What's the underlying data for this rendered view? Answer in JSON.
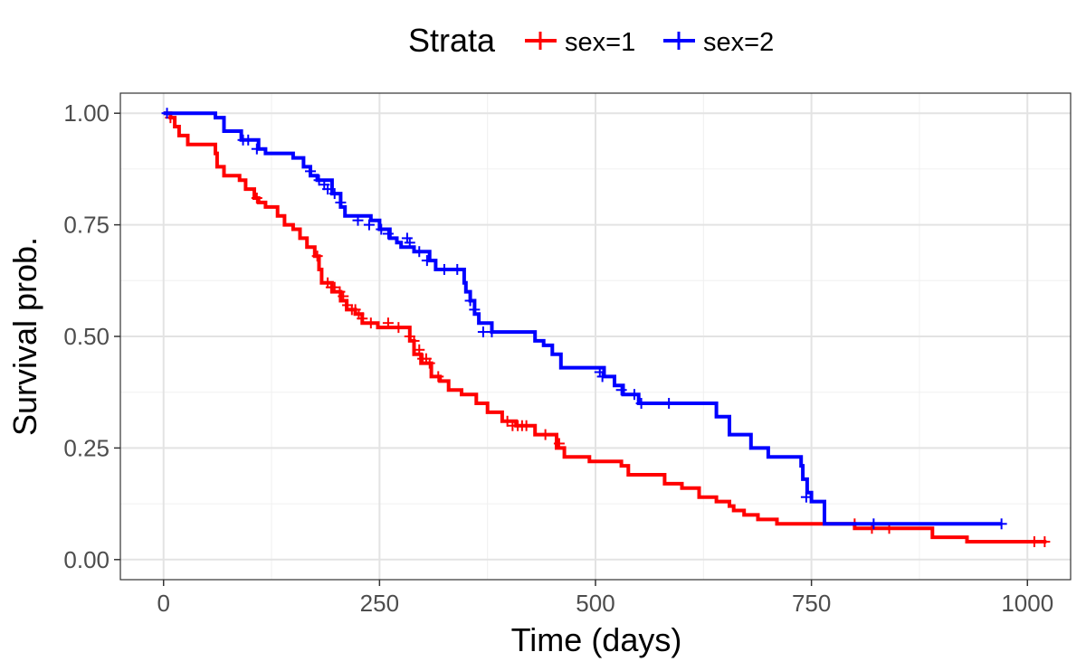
{
  "chart_data": {
    "type": "line",
    "subtype": "kaplan-meier step",
    "xlabel": "Time (days)",
    "ylabel": "Survival prob.",
    "xlim": [
      -50,
      1050
    ],
    "ylim": [
      -0.045,
      1.045
    ],
    "x_ticks": [
      0,
      250,
      500,
      750,
      1000
    ],
    "x_tick_labels": [
      "0",
      "250",
      "500",
      "750",
      "1000"
    ],
    "y_ticks": [
      0,
      0.25,
      0.5,
      0.75,
      1.0
    ],
    "y_tick_labels": [
      "0.00",
      "0.25",
      "0.50",
      "0.75",
      "1.00"
    ],
    "grid": true,
    "legend": {
      "title": "Strata",
      "position": "top"
    },
    "series": [
      {
        "name": "sex=1",
        "color": "#ff0000",
        "steps": [
          [
            0,
            1.0
          ],
          [
            8,
            0.99
          ],
          [
            13,
            0.97
          ],
          [
            18,
            0.95
          ],
          [
            28,
            0.93
          ],
          [
            60,
            0.91
          ],
          [
            62,
            0.88
          ],
          [
            70,
            0.86
          ],
          [
            88,
            0.85
          ],
          [
            95,
            0.83
          ],
          [
            105,
            0.81
          ],
          [
            110,
            0.8
          ],
          [
            118,
            0.79
          ],
          [
            132,
            0.77
          ],
          [
            140,
            0.75
          ],
          [
            150,
            0.74
          ],
          [
            158,
            0.72
          ],
          [
            166,
            0.7
          ],
          [
            175,
            0.68
          ],
          [
            180,
            0.65
          ],
          [
            183,
            0.62
          ],
          [
            195,
            0.6
          ],
          [
            205,
            0.58
          ],
          [
            212,
            0.56
          ],
          [
            222,
            0.55
          ],
          [
            230,
            0.53
          ],
          [
            248,
            0.52
          ],
          [
            285,
            0.49
          ],
          [
            290,
            0.46
          ],
          [
            298,
            0.44
          ],
          [
            310,
            0.41
          ],
          [
            320,
            0.4
          ],
          [
            330,
            0.38
          ],
          [
            345,
            0.37
          ],
          [
            362,
            0.35
          ],
          [
            375,
            0.33
          ],
          [
            392,
            0.31
          ],
          [
            408,
            0.3
          ],
          [
            430,
            0.28
          ],
          [
            455,
            0.25
          ],
          [
            464,
            0.23
          ],
          [
            493,
            0.22
          ],
          [
            530,
            0.21
          ],
          [
            538,
            0.19
          ],
          [
            580,
            0.17
          ],
          [
            600,
            0.16
          ],
          [
            620,
            0.14
          ],
          [
            640,
            0.13
          ],
          [
            655,
            0.12
          ],
          [
            660,
            0.11
          ],
          [
            672,
            0.1
          ],
          [
            688,
            0.09
          ],
          [
            710,
            0.08
          ],
          [
            800,
            0.07
          ],
          [
            890,
            0.05
          ],
          [
            930,
            0.04
          ],
          [
            1022,
            0.04
          ]
        ],
        "censor": [
          [
            8,
            0.99
          ],
          [
            108,
            0.81
          ],
          [
            178,
            0.68
          ],
          [
            190,
            0.62
          ],
          [
            194,
            0.61
          ],
          [
            198,
            0.61
          ],
          [
            204,
            0.6
          ],
          [
            208,
            0.59
          ],
          [
            213,
            0.57
          ],
          [
            218,
            0.56
          ],
          [
            222,
            0.56
          ],
          [
            226,
            0.55
          ],
          [
            230,
            0.54
          ],
          [
            240,
            0.53
          ],
          [
            260,
            0.53
          ],
          [
            272,
            0.52
          ],
          [
            285,
            0.5
          ],
          [
            290,
            0.49
          ],
          [
            296,
            0.47
          ],
          [
            300,
            0.45
          ],
          [
            304,
            0.45
          ],
          [
            308,
            0.44
          ],
          [
            318,
            0.41
          ],
          [
            398,
            0.31
          ],
          [
            404,
            0.3
          ],
          [
            410,
            0.3
          ],
          [
            415,
            0.3
          ],
          [
            420,
            0.3
          ],
          [
            442,
            0.28
          ],
          [
            458,
            0.26
          ],
          [
            800,
            0.08
          ],
          [
            820,
            0.07
          ],
          [
            840,
            0.07
          ],
          [
            1008,
            0.04
          ],
          [
            1020,
            0.04
          ]
        ]
      },
      {
        "name": "sex=2",
        "color": "#0000ff",
        "steps": [
          [
            0,
            1.0
          ],
          [
            60,
            0.99
          ],
          [
            70,
            0.96
          ],
          [
            90,
            0.94
          ],
          [
            110,
            0.92
          ],
          [
            118,
            0.91
          ],
          [
            150,
            0.9
          ],
          [
            162,
            0.88
          ],
          [
            170,
            0.86
          ],
          [
            178,
            0.85
          ],
          [
            195,
            0.82
          ],
          [
            205,
            0.79
          ],
          [
            210,
            0.77
          ],
          [
            240,
            0.76
          ],
          [
            250,
            0.74
          ],
          [
            262,
            0.72
          ],
          [
            270,
            0.71
          ],
          [
            275,
            0.7
          ],
          [
            290,
            0.69
          ],
          [
            308,
            0.67
          ],
          [
            315,
            0.65
          ],
          [
            348,
            0.62
          ],
          [
            350,
            0.6
          ],
          [
            355,
            0.58
          ],
          [
            360,
            0.55
          ],
          [
            365,
            0.53
          ],
          [
            380,
            0.51
          ],
          [
            430,
            0.49
          ],
          [
            440,
            0.48
          ],
          [
            450,
            0.46
          ],
          [
            460,
            0.43
          ],
          [
            510,
            0.41
          ],
          [
            522,
            0.39
          ],
          [
            532,
            0.37
          ],
          [
            550,
            0.35
          ],
          [
            640,
            0.32
          ],
          [
            655,
            0.28
          ],
          [
            680,
            0.25
          ],
          [
            700,
            0.23
          ],
          [
            738,
            0.21
          ],
          [
            740,
            0.18
          ],
          [
            745,
            0.15
          ],
          [
            750,
            0.13
          ],
          [
            765,
            0.08
          ],
          [
            970,
            0.08
          ]
        ],
        "censor": [
          [
            4,
            1.0
          ],
          [
            92,
            0.94
          ],
          [
            98,
            0.94
          ],
          [
            108,
            0.92
          ],
          [
            170,
            0.87
          ],
          [
            180,
            0.85
          ],
          [
            186,
            0.84
          ],
          [
            190,
            0.83
          ],
          [
            198,
            0.82
          ],
          [
            205,
            0.8
          ],
          [
            225,
            0.76
          ],
          [
            238,
            0.75
          ],
          [
            252,
            0.74
          ],
          [
            260,
            0.73
          ],
          [
            282,
            0.72
          ],
          [
            285,
            0.71
          ],
          [
            296,
            0.69
          ],
          [
            305,
            0.67
          ],
          [
            325,
            0.65
          ],
          [
            340,
            0.65
          ],
          [
            355,
            0.58
          ],
          [
            360,
            0.56
          ],
          [
            370,
            0.51
          ],
          [
            380,
            0.51
          ],
          [
            505,
            0.42
          ],
          [
            508,
            0.41
          ],
          [
            530,
            0.38
          ],
          [
            545,
            0.37
          ],
          [
            553,
            0.35
          ],
          [
            585,
            0.35
          ],
          [
            744,
            0.14
          ],
          [
            822,
            0.08
          ],
          [
            970,
            0.08
          ]
        ]
      }
    ]
  }
}
